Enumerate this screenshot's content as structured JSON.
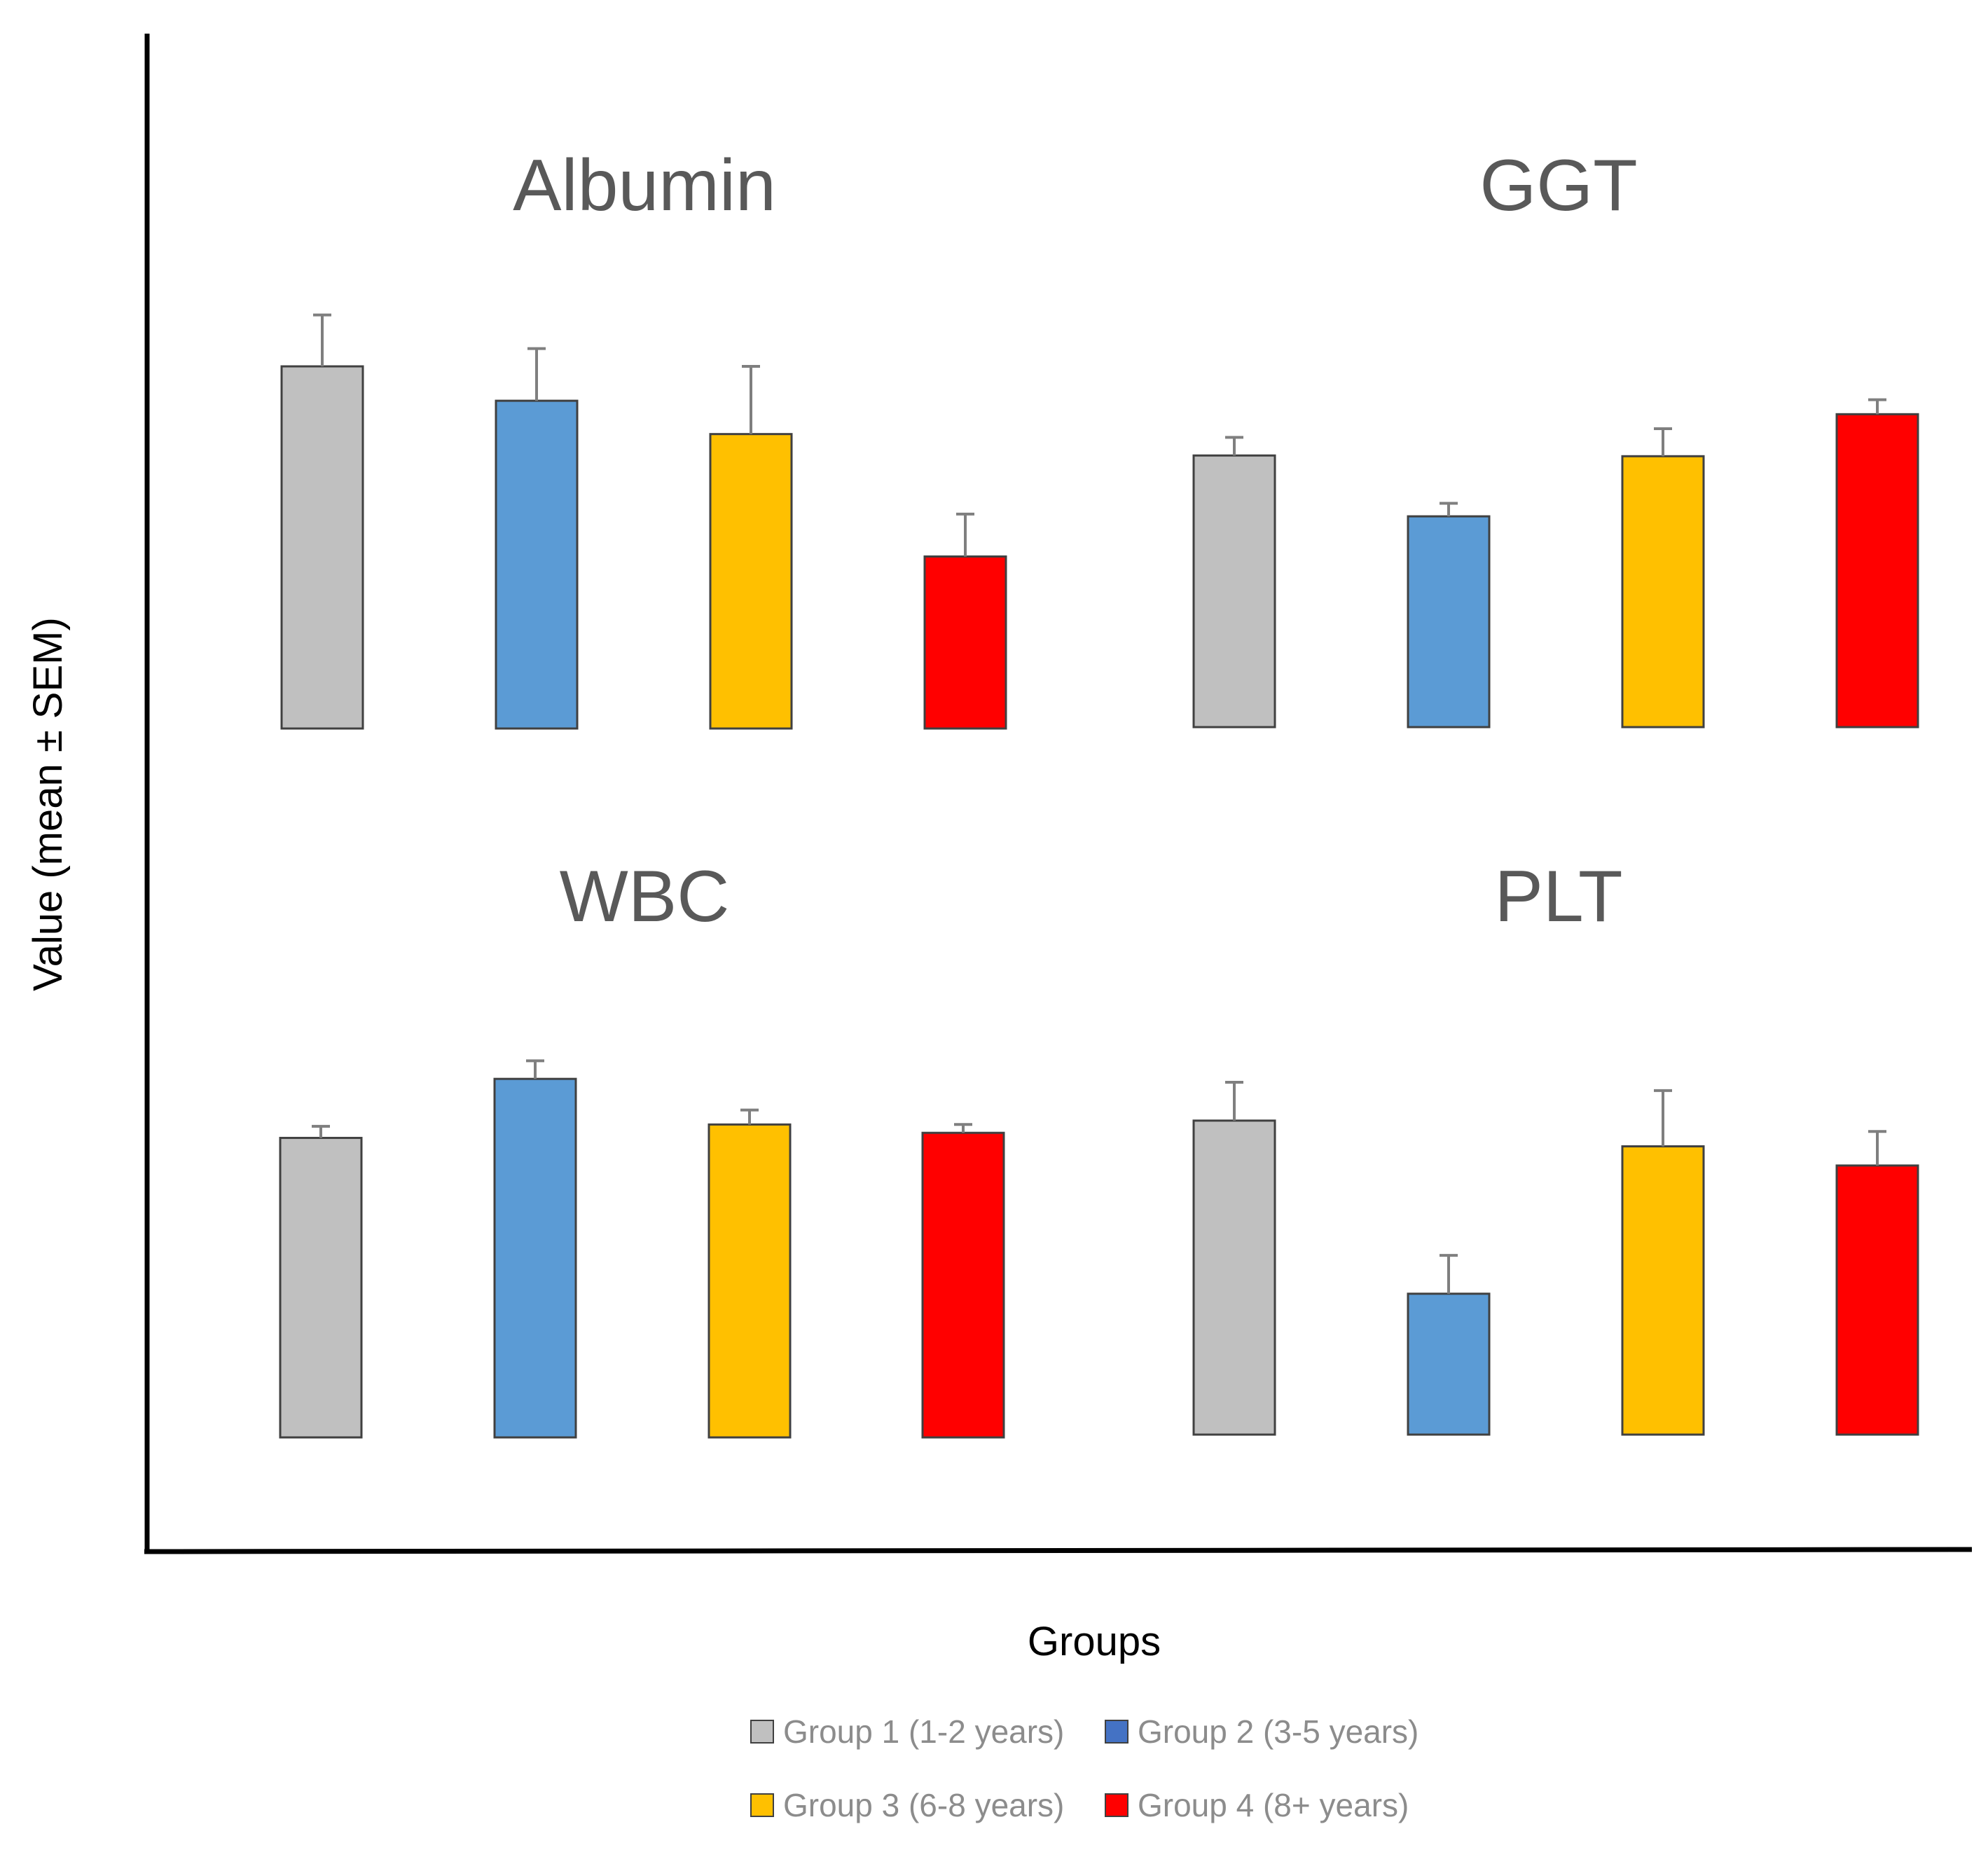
{
  "chart_data": {
    "type": "bar",
    "ylabel": "Value (mean ± SEM)",
    "xlabel": "Groups",
    "legend_position": "bottom",
    "series": [
      {
        "name": "Group 1 (1-2 years)",
        "color": "#c0c0c0"
      },
      {
        "name": "Group 2 (3-5 years)",
        "color": "#5b9bd5"
      },
      {
        "name": "Group 3 (6-8 years)",
        "color": "#ffc000"
      },
      {
        "name": "Group 4 (8+ years)",
        "color": "#ff0000"
      }
    ],
    "panels": [
      {
        "title": "Albumin",
        "values": [
          100,
          90.5,
          81.3,
          47.5
        ],
        "errors": [
          14.2,
          14.4,
          18.7,
          11.7
        ]
      },
      {
        "title": "GGT",
        "values": [
          75,
          58.2,
          74.8,
          86.4
        ],
        "errors": [
          5,
          3.6,
          7.6,
          4
        ]
      },
      {
        "title": "WBC",
        "values": [
          82.7,
          99,
          86.4,
          84.1
        ],
        "errors": [
          3.2,
          5,
          4,
          2.3
        ]
      },
      {
        "title": "PLT",
        "values": [
          86.7,
          38.9,
          79.6,
          74.3
        ],
        "errors": [
          10.6,
          10.6,
          15.4,
          9.4
        ]
      }
    ]
  }
}
